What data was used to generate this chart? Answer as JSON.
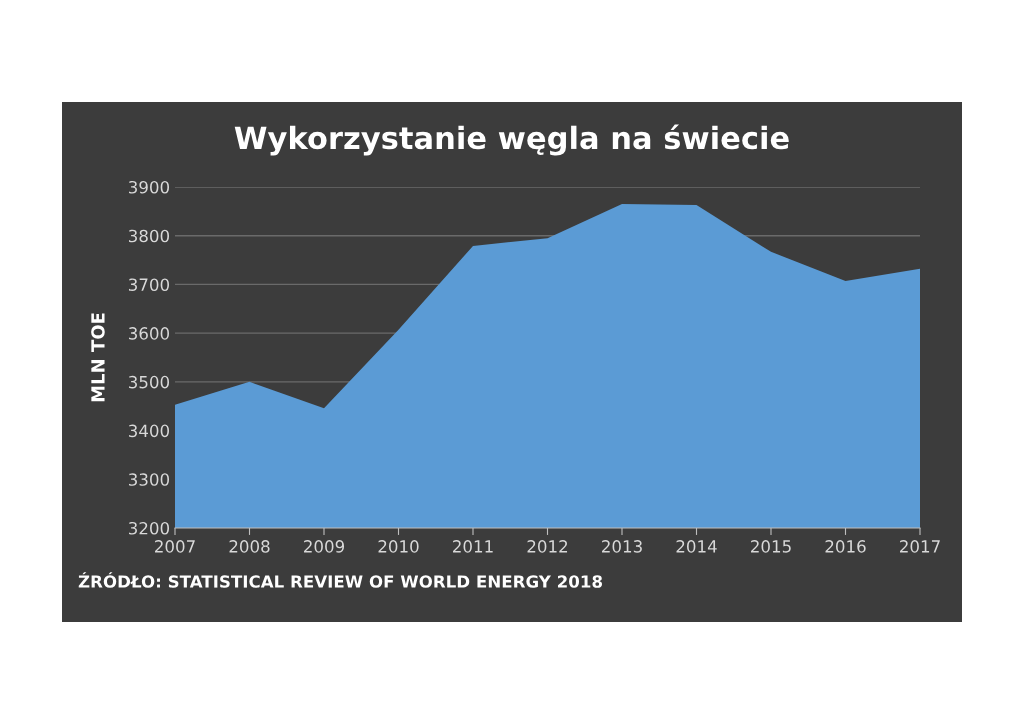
{
  "chart_data": {
    "type": "area",
    "title": "Wykorzystanie węgla na świecie",
    "ylabel": "MLN TOE",
    "x": [
      2007,
      2008,
      2009,
      2010,
      2011,
      2012,
      2013,
      2014,
      2015,
      2016,
      2017
    ],
    "series": [
      {
        "color": "#5b9bd5",
        "values": [
          3453,
          3500,
          3446,
          3607,
          3779,
          3795,
          3865,
          3863,
          3767,
          3707,
          3732
        ]
      }
    ],
    "xlim": [
      2007,
      2017
    ],
    "xticks": [
      2007,
      2008,
      2009,
      2010,
      2011,
      2012,
      2013,
      2014,
      2015,
      2016,
      2017
    ],
    "ylim": [
      3200,
      3900
    ],
    "yticks": [
      3200,
      3300,
      3400,
      3500,
      3600,
      3700,
      3800,
      3900
    ],
    "grid": "y",
    "annotations": [
      "ŹRÓDŁO: STATISTICAL REVIEW OF WORLD ENERGY 2018"
    ]
  }
}
